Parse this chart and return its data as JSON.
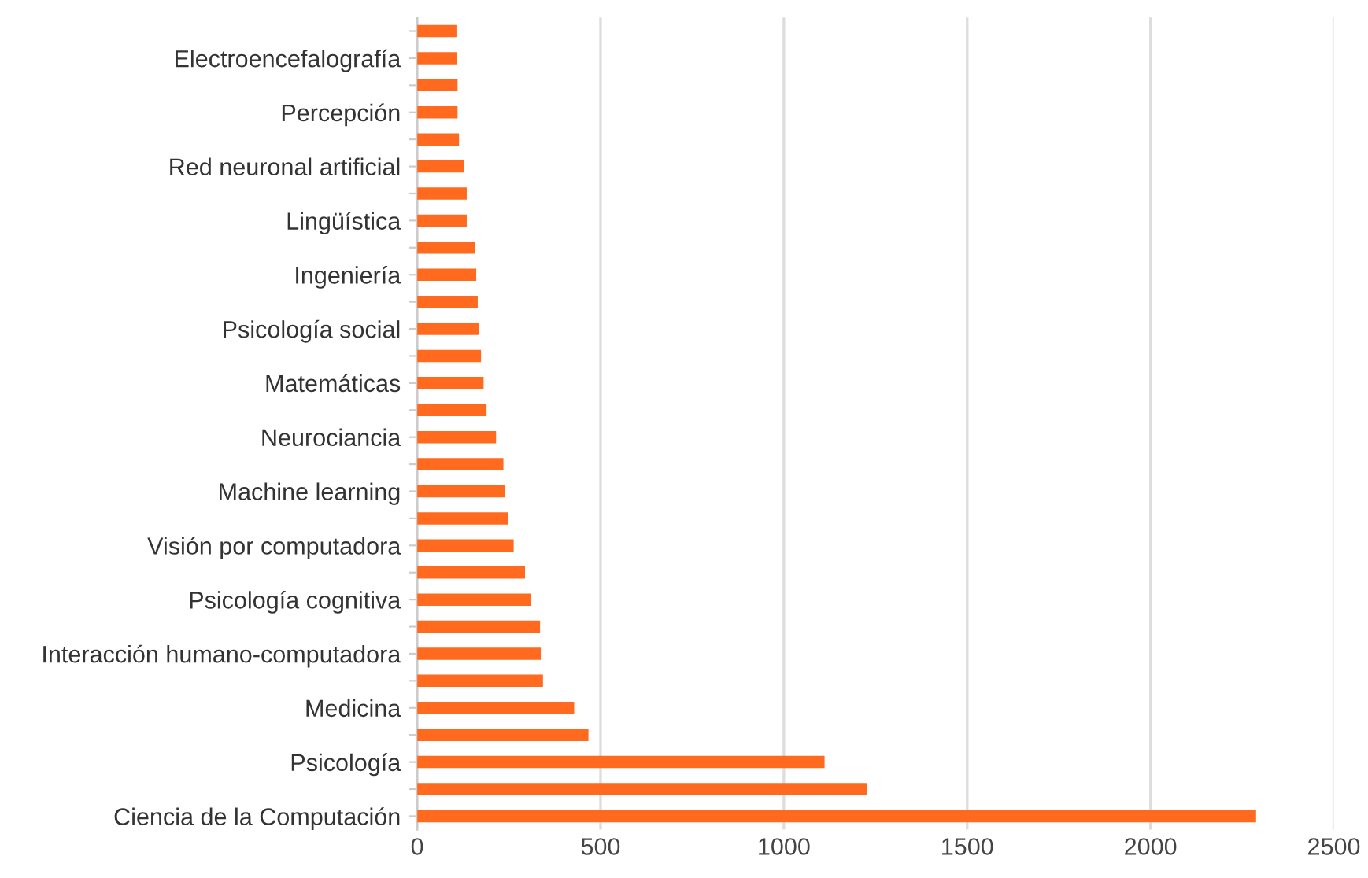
{
  "chart_data": {
    "type": "bar",
    "orientation": "horizontal",
    "categories": [
      null,
      "Electroencefalografía",
      null,
      "Percepción",
      null,
      "Red neuronal artificial",
      null,
      "Lingüística",
      null,
      "Ingeniería",
      null,
      "Psicología social",
      null,
      "Matemáticas",
      null,
      "Neurociancia",
      null,
      "Machine learning",
      null,
      "Visión por computadora",
      null,
      "Psicología cognitiva",
      null,
      "Interacción humano-computadora",
      null,
      "Medicina",
      null,
      "Psicología",
      null,
      "Ciencia de la Computación"
    ],
    "values": [
      107,
      108,
      110,
      110,
      114,
      127,
      135,
      135,
      158,
      161,
      165,
      168,
      174,
      181,
      189,
      215,
      235,
      240,
      248,
      263,
      294,
      310,
      335,
      337,
      343,
      428,
      467,
      1111,
      1226,
      2288
    ],
    "color": "#ff6a1f",
    "xlim": [
      0,
      2500
    ],
    "xticks": [
      0,
      500,
      1000,
      1500,
      2000,
      2500
    ],
    "grid": "x"
  }
}
